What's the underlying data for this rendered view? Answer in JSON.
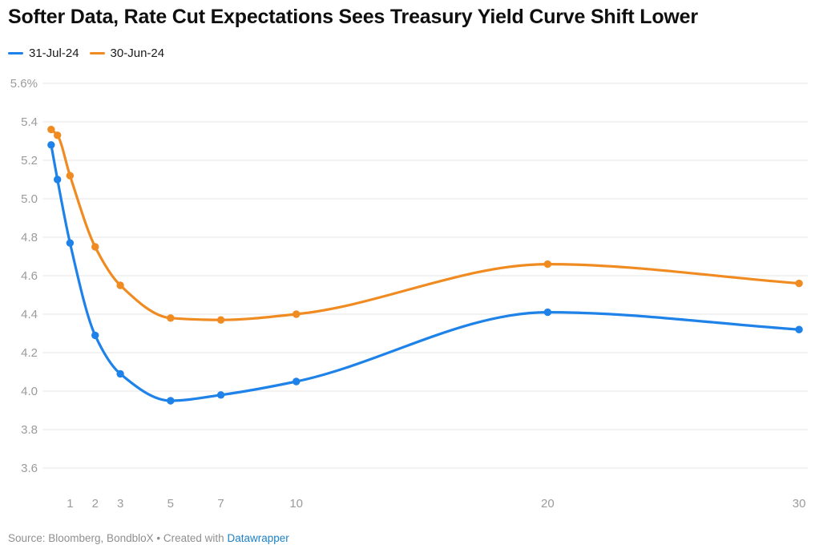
{
  "title": "Softer Data, Rate Cut Expectations Sees Treasury Yield Curve Shift Lower",
  "footer": {
    "source_text": "Source: Bloomberg, BondbloX",
    "separator": "•",
    "created_text": "Created with",
    "link_label": "Datawrapper"
  },
  "colors": {
    "grid": "#e6e6e6",
    "tick_label": "#9b9b9b",
    "title_text": "#0f0f0f",
    "footer_text": "#8f8f8f",
    "link": "#1d81c6",
    "series_blue": "#1e82e8",
    "series_orange": "#f08b22"
  },
  "chart_data": {
    "type": "line",
    "title": "Softer Data, Rate Cut Expectations Sees Treasury Yield Curve Shift Lower",
    "x": [
      0.25,
      0.5,
      1,
      2,
      3,
      5,
      7,
      10,
      20,
      30
    ],
    "series": [
      {
        "name": "31-Jul-24",
        "color": "#1e82e8",
        "values": [
          5.28,
          5.1,
          4.77,
          4.29,
          4.09,
          3.95,
          3.98,
          4.05,
          4.41,
          4.32
        ]
      },
      {
        "name": "30-Jun-24",
        "color": "#f08b22",
        "values": [
          5.36,
          5.33,
          5.12,
          4.75,
          4.55,
          4.38,
          4.37,
          4.4,
          4.66,
          4.56
        ]
      }
    ],
    "x_ticks": [
      1,
      2,
      3,
      5,
      7,
      10,
      20,
      30
    ],
    "y_ticks": [
      5.6,
      5.4,
      5.2,
      5.0,
      4.8,
      4.6,
      4.4,
      4.2,
      4.0,
      3.8,
      3.6
    ],
    "y_tick_top_label": "5.6%",
    "ylim": [
      3.6,
      5.6
    ],
    "xlim": [
      0,
      30
    ],
    "grid": "horizontal",
    "legend_position": "top-left",
    "unit": "%"
  }
}
